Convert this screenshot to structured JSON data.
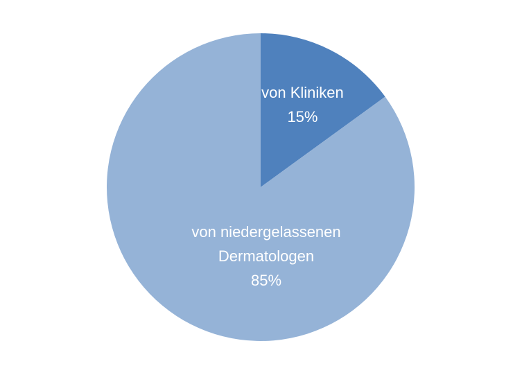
{
  "chart_data": {
    "type": "pie",
    "categories": [
      "von Kliniken",
      "von niedergelassenen Dermatologen"
    ],
    "values": [
      15,
      85
    ],
    "value_labels": [
      "15%",
      "85%"
    ],
    "colors": [
      "#4f81bd",
      "#95b3d7"
    ]
  }
}
